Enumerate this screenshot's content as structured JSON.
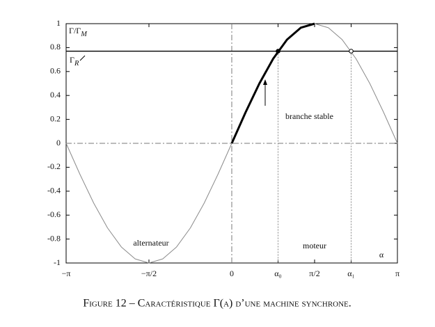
{
  "chart_data": {
    "type": "line",
    "caption": "Figure 12 –  Caractéristique Γ(α) d’une machine synchrone.",
    "y_label": {
      "text": "Γ/Γ",
      "subscript": "M"
    },
    "x_label": "α",
    "x": [
      -3.1416,
      -2.8798,
      -2.618,
      -2.3562,
      -2.0944,
      -1.8326,
      -1.5708,
      -1.309,
      -1.0472,
      -0.7854,
      -0.5236,
      -0.2618,
      0,
      0.2618,
      0.5236,
      0.7854,
      1.0472,
      1.309,
      1.5708,
      1.8326,
      2.0944,
      2.3562,
      2.618,
      2.8798,
      3.1416
    ],
    "series": [
      {
        "color": "#8a8a8a",
        "width": 1,
        "values": [
          0,
          -0.2588,
          -0.5,
          -0.7071,
          -0.866,
          -0.9659,
          -1,
          -0.9659,
          -0.866,
          -0.7071,
          -0.5,
          -0.2588,
          0,
          0.2588,
          0.5,
          0.7071,
          0.866,
          0.9659,
          1,
          0.9659,
          0.866,
          0.7071,
          0.5,
          0.2588,
          0
        ]
      },
      {
        "color": "#000000",
        "width": 3,
        "values": [
          null,
          null,
          null,
          null,
          null,
          null,
          null,
          null,
          null,
          null,
          null,
          null,
          0,
          0.2588,
          0.5,
          0.7071,
          0.866,
          0.9659,
          1,
          null,
          null,
          null,
          null,
          null,
          null
        ]
      }
    ],
    "reference_line": {
      "value": 0.77,
      "label": {
        "text": "Γ",
        "subscript": "R"
      }
    },
    "markers": {
      "x": [
        0.878,
        2.264
      ],
      "values": [
        0.77,
        0.77
      ],
      "filled": [
        true,
        false
      ]
    },
    "annotations": [
      "branche stable",
      "alternateur",
      "moteur"
    ],
    "xlim": [
      -3.1416,
      3.1416
    ],
    "ylim": [
      -1,
      1
    ],
    "xticks": [
      {
        "value": -3.1416,
        "label": "−π"
      },
      {
        "value": -1.5708,
        "label": "−π/2"
      },
      0,
      {
        "value": 0.878,
        "label": "α₀"
      },
      {
        "value": 1.5708,
        "label": "π/2"
      },
      {
        "value": 2.264,
        "label": "α₁"
      },
      {
        "value": 3.1416,
        "label": "π"
      }
    ],
    "yticks": [
      -1,
      -0.8,
      -0.6,
      -0.4,
      -0.2,
      0,
      0.2,
      0.4,
      0.6,
      0.8,
      1
    ]
  }
}
